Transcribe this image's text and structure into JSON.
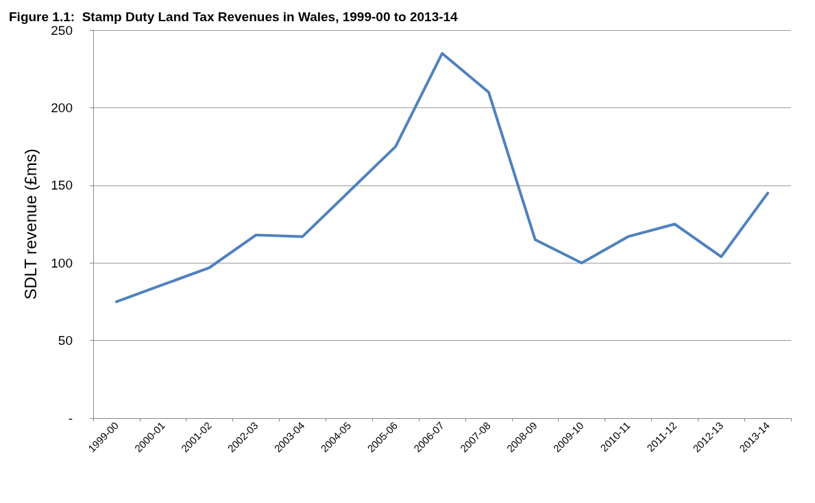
{
  "chart_data": {
    "type": "line",
    "title": "Figure 1.1:  Stamp Duty Land Tax Revenues in Wales, 1999-00 to 2013-14",
    "ylabel": "SDLT revenue (£ms)",
    "categories": [
      "1999-00",
      "2000-01",
      "2001-02",
      "2002-03",
      "2003-04",
      "2004-05",
      "2005-06",
      "2006-07",
      "2007-08",
      "2008-09",
      "2009-10",
      "2010-11",
      "2011-12",
      "2012-13",
      "2013-14"
    ],
    "series": [
      {
        "color": "#4f81bd",
        "values": [
          75,
          86,
          97,
          118,
          117,
          146,
          175,
          235,
          210,
          115,
          100,
          117,
          125,
          104,
          145
        ]
      }
    ],
    "ylim": [
      0,
      250
    ],
    "yticks": [
      {
        "value": 0,
        "label": "-"
      },
      50,
      100,
      150,
      200,
      250
    ],
    "grid": "y",
    "marker": "none",
    "line_style": "solid"
  }
}
